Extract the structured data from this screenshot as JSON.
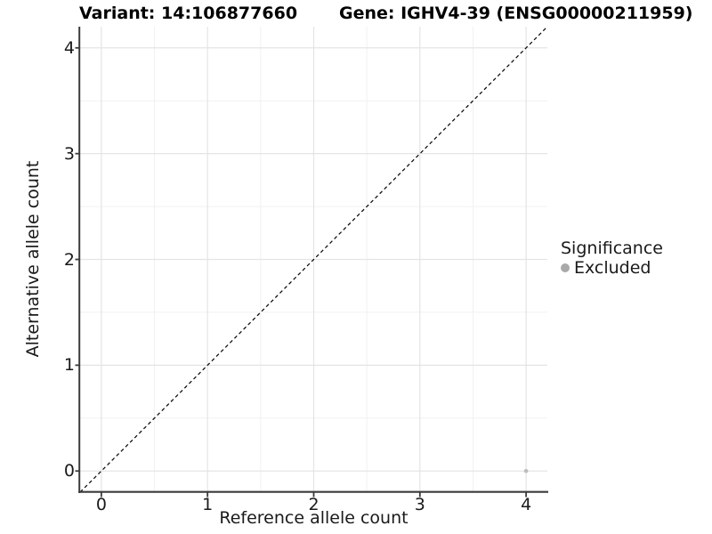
{
  "header": {
    "title_left": "Variant: 14:106877660",
    "title_right": "Gene: IGHV4-39 (ENSG00000211959)"
  },
  "chart_data": {
    "type": "scatter",
    "title": "Variant: 14:106877660   Gene: IGHV4-39 (ENSG00000211959)",
    "xlabel": "Reference allele count",
    "ylabel": "Alternative allele count",
    "xlim": [
      -0.2,
      4.2
    ],
    "ylim": [
      -0.2,
      4.2
    ],
    "x_ticks": [
      0,
      1,
      2,
      3,
      4
    ],
    "y_ticks": [
      0,
      1,
      2,
      3,
      4
    ],
    "grid": {
      "major": true,
      "minor": true,
      "major_color": "#e4e4e4",
      "minor_color": "#f1f1f1"
    },
    "reference_line": {
      "type": "identity",
      "style": "dashed",
      "color": "#0a0a0a",
      "from": [
        -0.2,
        -0.2
      ],
      "to": [
        4.2,
        4.2
      ]
    },
    "series": [
      {
        "name": "Excluded",
        "color": "#bdbdbd",
        "point_radius": 2.3,
        "points": [
          [
            4,
            0
          ]
        ]
      }
    ],
    "legend": {
      "title": "Significance",
      "position": "right",
      "items": [
        {
          "label": "Excluded",
          "color": "#a9a9a9"
        }
      ]
    },
    "axis_color": "#3b3b3b",
    "background": "#ffffff"
  }
}
